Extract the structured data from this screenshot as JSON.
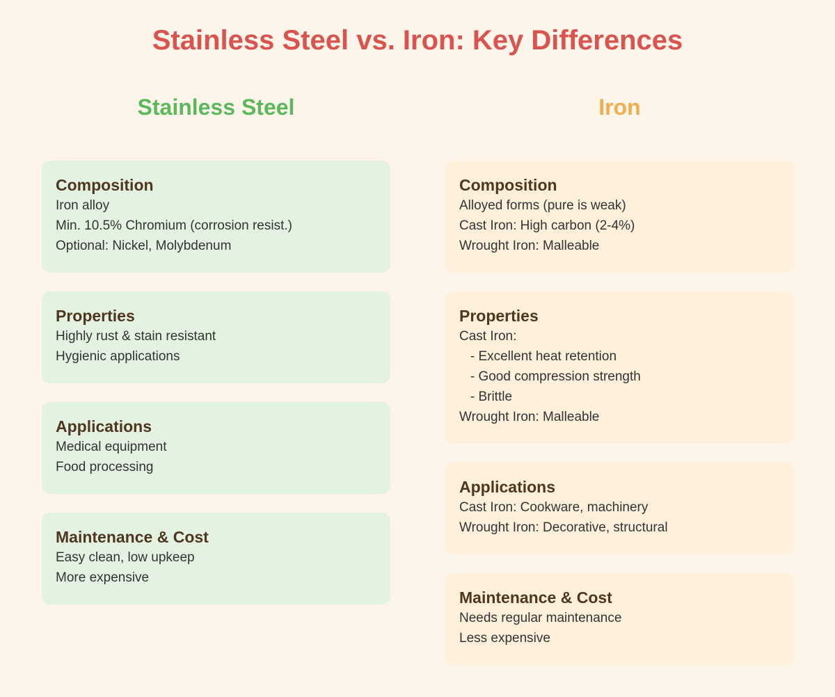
{
  "title": "Stainless Steel vs. Iron: Key Differences",
  "columns": [
    {
      "heading": "Stainless Steel",
      "sections": [
        {
          "title": "Composition",
          "lines": [
            "Iron alloy",
            "Min. 10.5% Chromium (corrosion resist.)",
            "Optional: Nickel, Molybdenum"
          ]
        },
        {
          "title": "Properties",
          "lines": [
            "Highly rust & stain resistant",
            "Hygienic applications"
          ]
        },
        {
          "title": "Applications",
          "lines": [
            "Medical equipment",
            "Food processing"
          ]
        },
        {
          "title": "Maintenance & Cost",
          "lines": [
            "Easy clean, low upkeep",
            "More expensive"
          ]
        }
      ]
    },
    {
      "heading": "Iron",
      "sections": [
        {
          "title": "Composition",
          "lines": [
            "Alloyed forms (pure is weak)",
            "Cast Iron: High carbon (2-4%)",
            "Wrought Iron: Malleable"
          ]
        },
        {
          "title": "Properties",
          "lines": [
            "Cast Iron:",
            "   - Excellent heat retention",
            "   - Good compression strength",
            "   - Brittle",
            "Wrought Iron: Malleable"
          ]
        },
        {
          "title": "Applications",
          "lines": [
            "Cast Iron: Cookware, machinery",
            "Wrought Iron: Decorative, structural"
          ]
        },
        {
          "title": "Maintenance & Cost",
          "lines": [
            "Needs regular maintenance",
            "Less expensive"
          ]
        }
      ]
    }
  ],
  "colors": {
    "title": "#d9534f",
    "stainless_heading": "#5cb85c",
    "iron_heading": "#f0ad4e",
    "stainless_card": "#e4f2e2",
    "iron_card": "#fff0dc",
    "background": "#fdf5ea",
    "card_title": "#4e3620"
  }
}
